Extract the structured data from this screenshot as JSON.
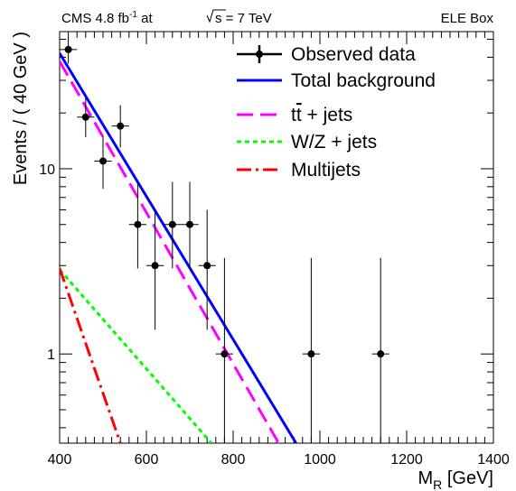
{
  "header": {
    "cms_prefix": "CMS  4.8 fb",
    "lumi_sup": "-1",
    "at_text": " at ",
    "sqrt_s": "s",
    "energy_text": " = 7 TeV",
    "box_label": "ELE Box"
  },
  "chart_data": {
    "type": "scatter",
    "xlabel_main": "M",
    "xlabel_sub": "R",
    "xlabel_unit": " [GeV]",
    "ylabel": "Events / ( 40 GeV )",
    "xlim": [
      400,
      1400
    ],
    "ylim": [
      0.33,
      55
    ],
    "y_scale": "log",
    "x_ticks": [
      "400",
      "600",
      "800",
      "1000",
      "1200",
      "1400"
    ],
    "y_ticks": [
      "1",
      "10"
    ],
    "legend_position": "top-right",
    "legend": [
      {
        "label": "Observed data",
        "style": "marker-errorbar",
        "color": "#000000"
      },
      {
        "label": "Total background",
        "style": "solid",
        "color": "#0000ff"
      },
      {
        "label_t": "t",
        "label_tbar": "t",
        "label_rest": " + jets",
        "style": "dashed",
        "color": "#ff00ff"
      },
      {
        "label": "W/Z + jets",
        "style": "dotted",
        "color": "#00ff00"
      },
      {
        "label": "Multijets",
        "style": "dashdot",
        "color": "#ff0000"
      }
    ],
    "observed_data": [
      {
        "x": 420,
        "y": 44,
        "ylo": 37,
        "yhi": 51
      },
      {
        "x": 460,
        "y": 19,
        "ylo": 14.8,
        "yhi": 24
      },
      {
        "x": 500,
        "y": 11,
        "ylo": 7.8,
        "yhi": 15
      },
      {
        "x": 540,
        "y": 17,
        "ylo": 13,
        "yhi": 22
      },
      {
        "x": 580,
        "y": 5,
        "ylo": 2.9,
        "yhi": 8.5
      },
      {
        "x": 620,
        "y": 3,
        "ylo": 1.35,
        "yhi": 6.0
      },
      {
        "x": 660,
        "y": 5,
        "ylo": 2.9,
        "yhi": 8.5
      },
      {
        "x": 700,
        "y": 5,
        "ylo": 2.9,
        "yhi": 8.5
      },
      {
        "x": 740,
        "y": 3,
        "ylo": 1.35,
        "yhi": 6.0
      },
      {
        "x": 780,
        "y": 1,
        "ylo": 0.33,
        "yhi": 3.3
      },
      {
        "x": 980,
        "y": 1,
        "ylo": 0.33,
        "yhi": 3.3
      },
      {
        "x": 1140,
        "y": 1,
        "ylo": 0.33,
        "yhi": 3.3
      }
    ],
    "x_half_width": 20,
    "series": [
      {
        "name": "Total background",
        "color": "#0000ff",
        "dash": "",
        "x": [
          400,
          945
        ],
        "y": [
          42,
          0.33
        ]
      },
      {
        "name": "tt + jets",
        "color": "#ff00ff",
        "dash": "18,8",
        "x": [
          400,
          905
        ],
        "y": [
          38,
          0.33
        ]
      },
      {
        "name": "W/Z + jets",
        "color": "#00ff00",
        "dash": "5,4",
        "x": [
          400,
          750
        ],
        "y": [
          2.85,
          0.33
        ]
      },
      {
        "name": "Multijets",
        "color": "#ff0000",
        "dash": "16,5,3,5",
        "x": [
          400,
          540
        ],
        "y": [
          2.9,
          0.33
        ]
      }
    ]
  }
}
